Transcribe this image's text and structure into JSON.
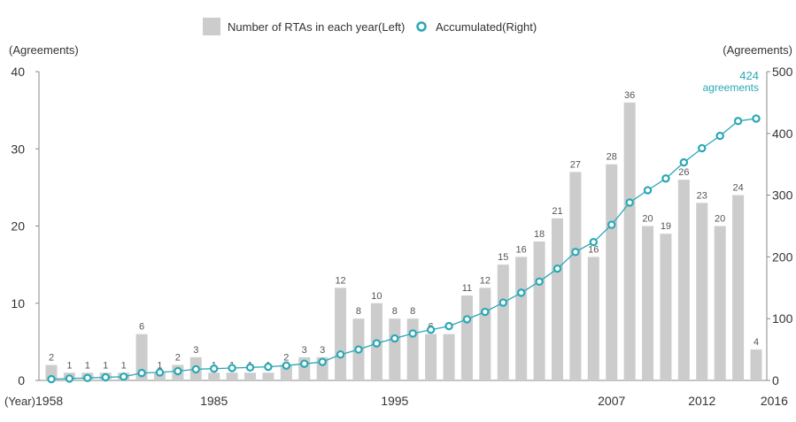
{
  "chart_data": {
    "type": "bar",
    "legend": {
      "bar_label": "Number of RTAs in each year(Left)",
      "line_label": "Accumulated(Right)",
      "position": "top-center"
    },
    "y_left": {
      "label": "(Agreements)",
      "range": [
        0,
        40
      ],
      "ticks": [
        "0",
        "10",
        "20",
        "30",
        "40"
      ]
    },
    "y_right": {
      "label": "(Agreements)",
      "range": [
        0,
        500
      ],
      "ticks": [
        "0",
        "100",
        "200",
        "300",
        "400",
        "500"
      ]
    },
    "x_prefix": "(Year)",
    "x_ticks": [
      {
        "index": 0,
        "label": "1958"
      },
      {
        "index": 9,
        "label": "1985"
      },
      {
        "index": 19,
        "label": "1995"
      },
      {
        "index": 31,
        "label": "2007"
      },
      {
        "index": 36,
        "label": "2012"
      },
      {
        "index": 40,
        "label": "2016"
      }
    ],
    "series": [
      {
        "name": "Number of RTAs in each year(Left)",
        "kind": "bar",
        "axis": "left",
        "values": [
          2,
          1,
          1,
          1,
          1,
          6,
          1,
          2,
          3,
          1,
          1,
          1,
          1,
          2,
          3,
          3,
          12,
          8,
          10,
          8,
          8,
          6,
          6,
          11,
          12,
          15,
          16,
          18,
          21,
          27,
          16,
          28,
          36,
          20,
          19,
          26,
          23,
          20,
          24,
          4
        ]
      },
      {
        "name": "Accumulated(Right)",
        "kind": "line",
        "axis": "right",
        "values": [
          2,
          3,
          4,
          5,
          6,
          12,
          13,
          15,
          18,
          19,
          20,
          21,
          22,
          24,
          27,
          30,
          42,
          50,
          60,
          68,
          76,
          82,
          88,
          99,
          111,
          126,
          142,
          160,
          181,
          208,
          224,
          252,
          288,
          308,
          327,
          353,
          376,
          396,
          420,
          424
        ]
      }
    ],
    "annotation": {
      "value_text": "424",
      "unit_text": "agreements"
    },
    "colors": {
      "bar": "#cccccc",
      "line": "#2aa8b5",
      "text": "#333333",
      "axis": "#888888"
    }
  }
}
